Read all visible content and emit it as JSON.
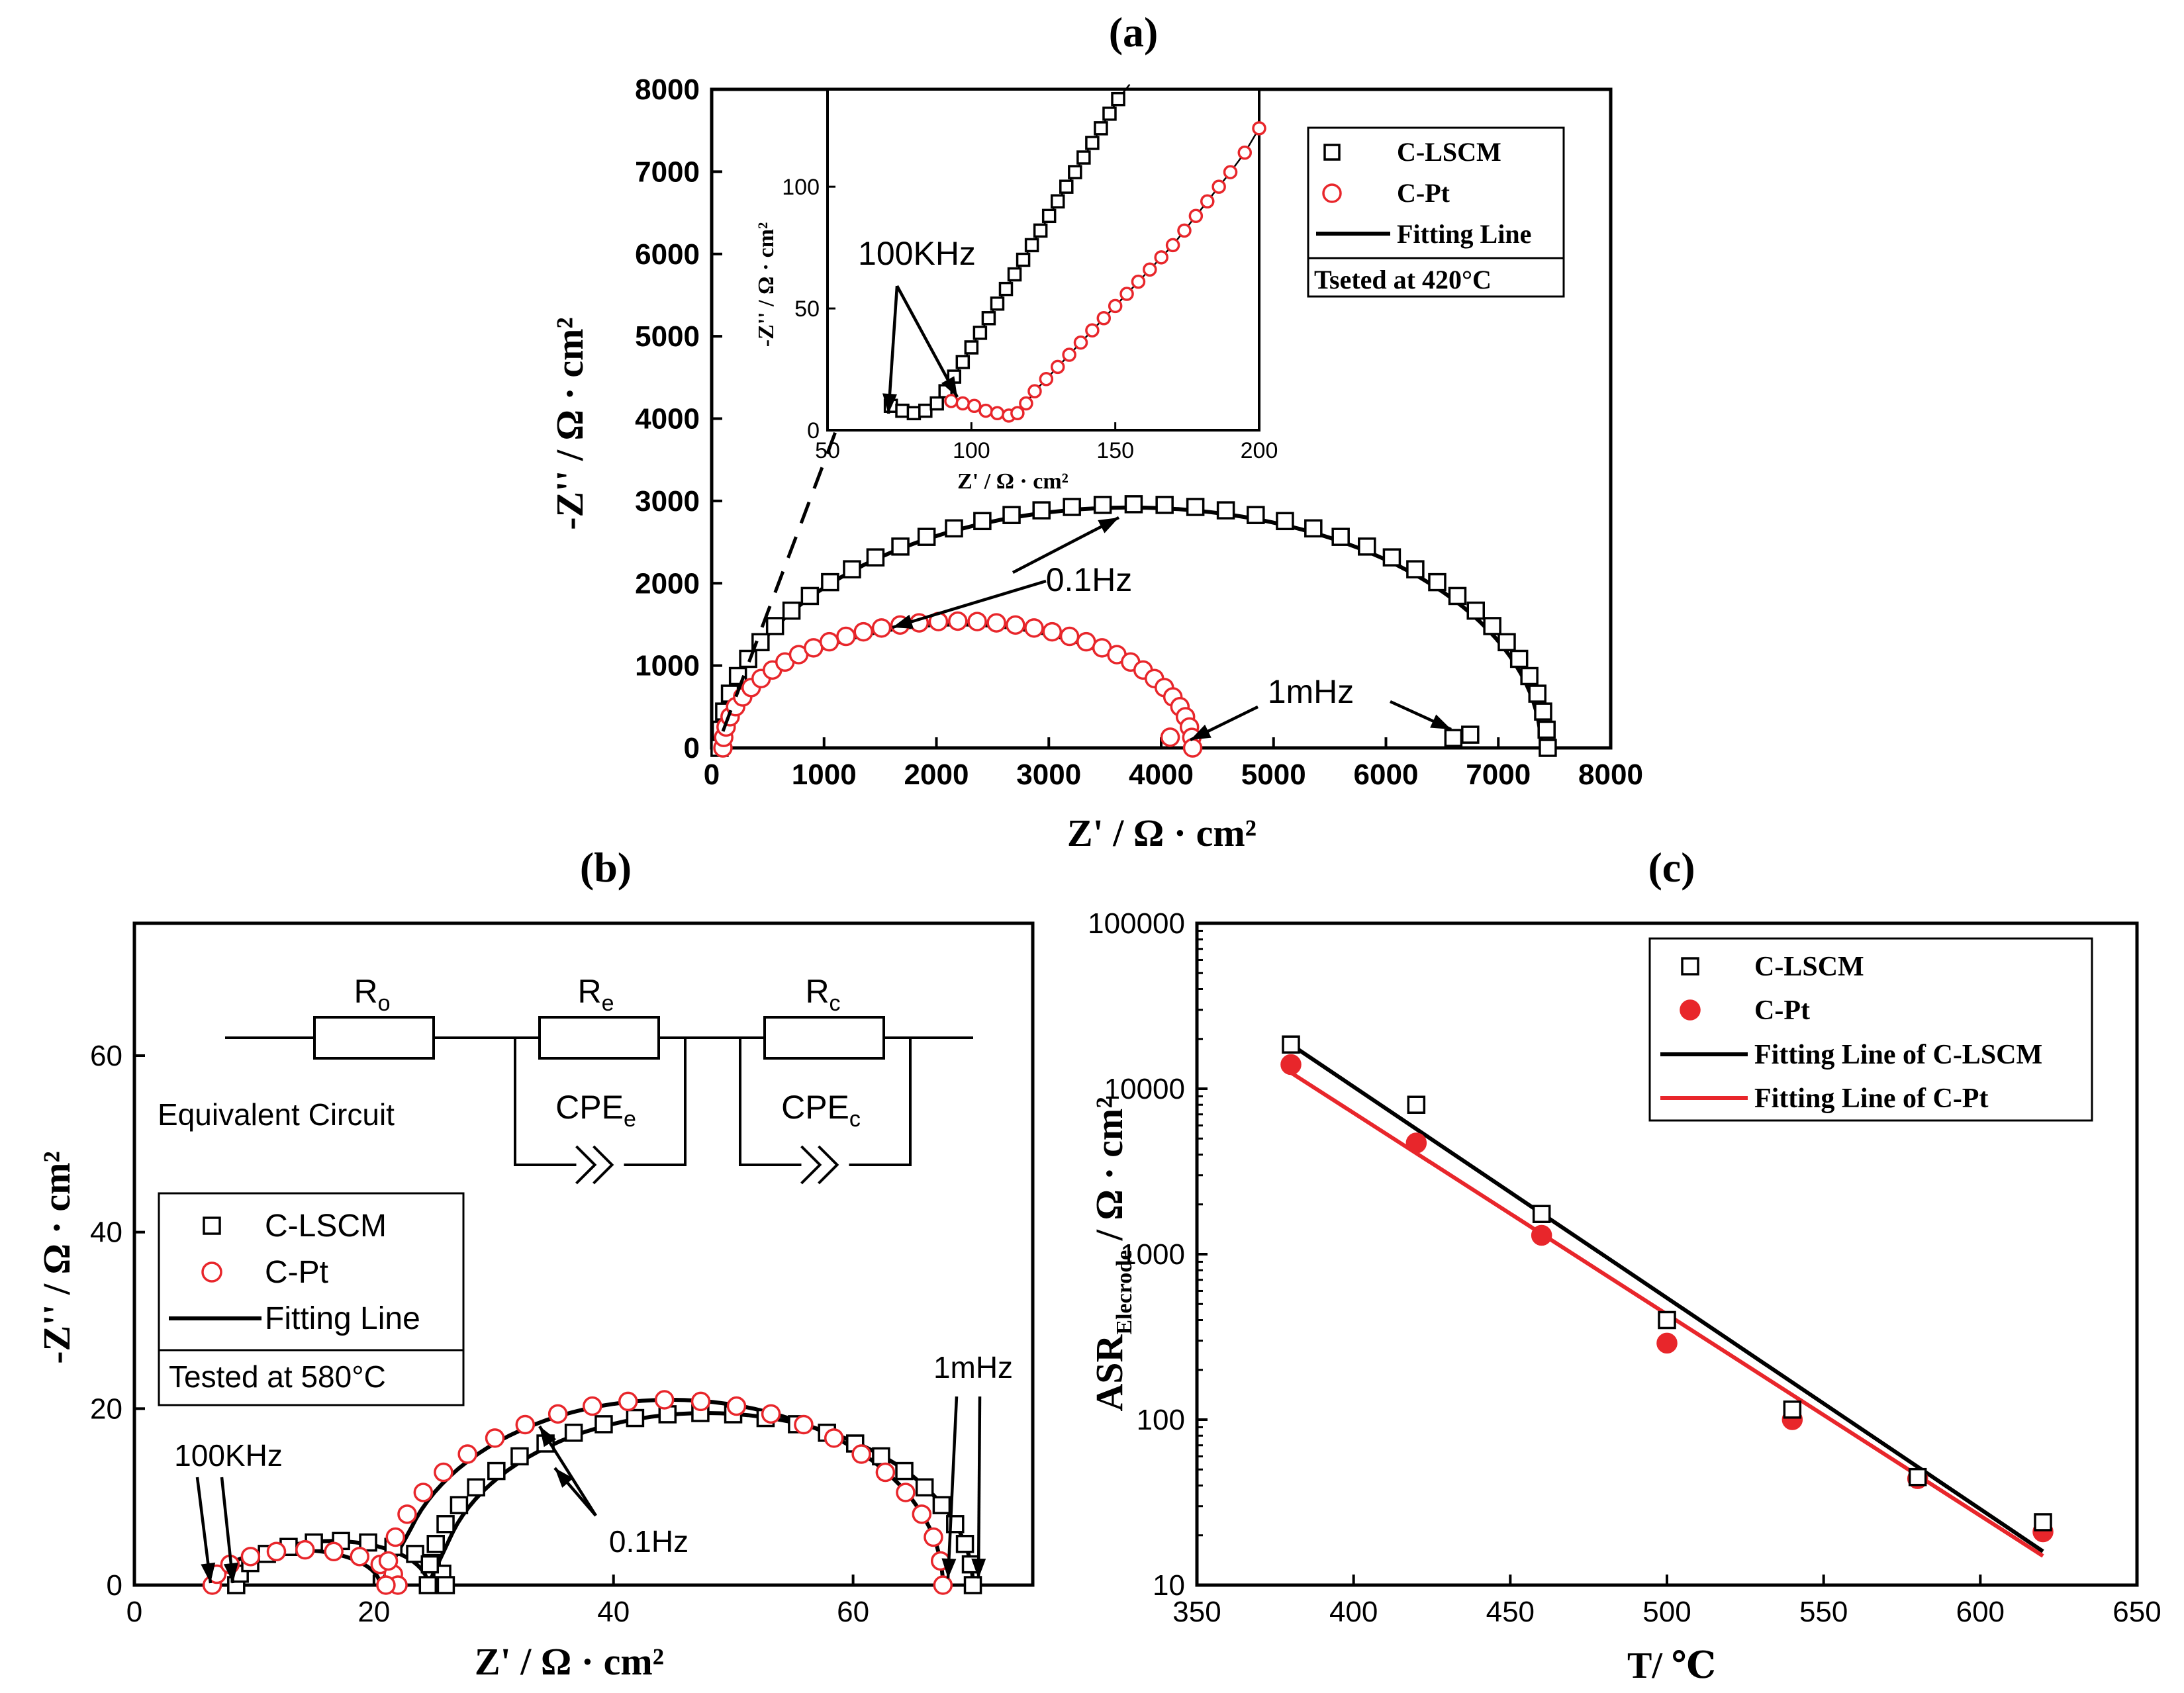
{
  "colors": {
    "black": "#000000",
    "red": "#e8262b"
  },
  "chart_data": [
    {
      "id": "a",
      "type": "scatter",
      "panel_label": "(a)",
      "xlabel": "Z' / Ω · cm²",
      "ylabel": "-Z'' / Ω · cm²",
      "xlim": [
        0,
        8000
      ],
      "ylim": [
        0,
        8000
      ],
      "xticks": [
        "0",
        "1000",
        "2000",
        "3000",
        "4000",
        "5000",
        "6000",
        "7000",
        "8000"
      ],
      "yticks": [
        "0",
        "1000",
        "2000",
        "3000",
        "4000",
        "5000",
        "6000",
        "7000",
        "8000"
      ],
      "legend": [
        "C-LSCM",
        "C-Pt",
        "Fitting Line"
      ],
      "legend_note": "Tseted at 420°C",
      "annotations": [
        "0.1Hz",
        "1mHz"
      ],
      "series": [
        {
          "name": "C-LSCM",
          "marker": "open-square",
          "color": "#000000",
          "semicircle": {
            "r0": 70,
            "r1": 7440,
            "z1": 2960,
            "n": 42
          },
          "tail": [
            [
              6600,
              120
            ],
            [
              6750,
              160
            ]
          ]
        },
        {
          "name": "C-Pt",
          "marker": "open-circle",
          "color": "#e8262b",
          "semicircle": {
            "r0": 100,
            "r1": 4280,
            "z1": 1540,
            "n": 38
          },
          "tail": [
            [
              4080,
              130
            ]
          ]
        },
        {
          "name": "Fitting Line",
          "type": "line",
          "color": "#000000"
        }
      ],
      "inset": {
        "xlabel": "Z' / Ω · cm²",
        "ylabel": "-Z'' / Ω · cm²",
        "xlim": [
          50,
          200
        ],
        "ylim": [
          0,
          140
        ],
        "xticks": [
          "50",
          "100",
          "150",
          "200"
        ],
        "yticks": [
          "0",
          "50",
          "100"
        ],
        "annotation": "100KHz",
        "series": [
          {
            "name": "C-LSCM",
            "points": [
              [
                72,
                10
              ],
              [
                76,
                8
              ],
              [
                80,
                7
              ],
              [
                84,
                8
              ],
              [
                88,
                11
              ],
              [
                91,
                16
              ],
              [
                94,
                22
              ],
              [
                97,
                28
              ],
              [
                100,
                34
              ],
              [
                103,
                40
              ],
              [
                106,
                46
              ],
              [
                109,
                52
              ],
              [
                112,
                58
              ],
              [
                115,
                64
              ],
              [
                118,
                70
              ],
              [
                121,
                76
              ],
              [
                124,
                82
              ],
              [
                127,
                88
              ],
              [
                130,
                94
              ],
              [
                133,
                100
              ],
              [
                136,
                106
              ],
              [
                139,
                112
              ],
              [
                142,
                118
              ],
              [
                145,
                124
              ],
              [
                148,
                130
              ],
              [
                151,
                136
              ]
            ]
          },
          {
            "name": "C-Pt",
            "points": [
              [
                93,
                12
              ],
              [
                97,
                11
              ],
              [
                101,
                10
              ],
              [
                105,
                8
              ],
              [
                109,
                7
              ],
              [
                113,
                6
              ],
              [
                116,
                7
              ],
              [
                119,
                11
              ],
              [
                122,
                16
              ],
              [
                126,
                21
              ],
              [
                130,
                26
              ],
              [
                134,
                31
              ],
              [
                138,
                36
              ],
              [
                142,
                41
              ],
              [
                146,
                46
              ],
              [
                150,
                51
              ],
              [
                154,
                56
              ],
              [
                158,
                61
              ],
              [
                162,
                66
              ],
              [
                166,
                71
              ],
              [
                170,
                76
              ],
              [
                174,
                82
              ],
              [
                178,
                88
              ],
              [
                182,
                94
              ],
              [
                186,
                100
              ],
              [
                190,
                106
              ],
              [
                195,
                114
              ],
              [
                200,
                124
              ]
            ]
          }
        ]
      }
    },
    {
      "id": "b",
      "type": "scatter",
      "panel_label": "(b)",
      "xlabel": "Z' / Ω · cm²",
      "ylabel": "-Z'' / Ω · cm²",
      "xlim": [
        0,
        75
      ],
      "ylim": [
        0,
        75
      ],
      "xticks": [
        "0",
        "20",
        "40",
        "60"
      ],
      "yticks": [
        "0",
        "20",
        "40",
        "60"
      ],
      "legend": [
        "C-LSCM",
        "C-Pt",
        "Fitting Line"
      ],
      "legend_note": "Tested at 580°C",
      "circuit": {
        "title": "Equivalent Circuit",
        "labels": [
          "R",
          "o",
          "R",
          "e",
          "R",
          "c",
          "CPE",
          "e",
          "CPE",
          "c"
        ]
      },
      "annotations": [
        "100KHz",
        "0.1Hz",
        "1mHz"
      ],
      "series": [
        {
          "name": "C-LSCM",
          "marker": "open-square",
          "color": "#000000",
          "arc1": {
            "r0": 8.5,
            "r1": 26,
            "z1": 5,
            "n": 12
          },
          "arc2": {
            "r0": 24.5,
            "r1": 70,
            "z1": 19.5,
            "n": 26
          }
        },
        {
          "name": "C-Pt",
          "marker": "open-circle",
          "color": "#e8262b",
          "arc1": {
            "r0": 6.5,
            "r1": 22,
            "z1": 4,
            "n": 10
          },
          "arc2": {
            "r0": 21,
            "r1": 67.5,
            "z1": 21,
            "n": 24
          }
        },
        {
          "name": "Fitting Line",
          "type": "line",
          "color": "#000000"
        }
      ]
    },
    {
      "id": "c",
      "type": "scatter",
      "panel_label": "(c)",
      "xlabel": "T/ ℃",
      "ylabel_main": "ASR",
      "ylabel_sub": "Elecrode",
      "ylabel_rest": "/ Ω · cm²",
      "yscale": "log",
      "xlim": [
        350,
        650
      ],
      "ylim": [
        10,
        100000
      ],
      "xticks": [
        "350",
        "400",
        "450",
        "500",
        "550",
        "600",
        "650"
      ],
      "yticks": [
        "10",
        "100",
        "1000",
        "10000",
        "100000"
      ],
      "legend": [
        "C-LSCM",
        "C-Pt",
        "Fitting Line of C-LSCM",
        "Fitting Line of C-Pt"
      ],
      "series": [
        {
          "name": "C-LSCM",
          "marker": "open-square",
          "color": "#000000",
          "x": [
            380,
            420,
            460,
            500,
            540,
            580,
            620
          ],
          "y": [
            18500,
            8000,
            1750,
            400,
            115,
            45,
            24
          ]
        },
        {
          "name": "C-Pt",
          "marker": "filled-circle",
          "color": "#e8262b",
          "x": [
            380,
            420,
            460,
            500,
            540,
            580,
            620
          ],
          "y": [
            14000,
            4700,
            1300,
            290,
            100,
            44,
            21
          ]
        },
        {
          "name": "Fitting Line of C-LSCM",
          "type": "line",
          "color": "#000000",
          "x": [
            380,
            620
          ],
          "y": [
            18500,
            16
          ]
        },
        {
          "name": "Fitting Line of C-Pt",
          "type": "line",
          "color": "#e8262b",
          "x": [
            380,
            620
          ],
          "y": [
            12500,
            15
          ]
        }
      ]
    }
  ]
}
